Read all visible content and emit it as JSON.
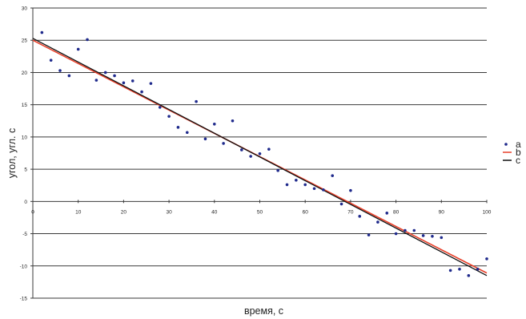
{
  "chart_data": {
    "type": "scatter",
    "title": "",
    "xlabel": "время, с",
    "ylabel": "угол, угл. с",
    "xlim": [
      0,
      100
    ],
    "ylim": [
      -15,
      30
    ],
    "xticks": [
      0,
      10,
      20,
      30,
      40,
      50,
      60,
      70,
      80,
      90,
      100
    ],
    "yticks": [
      -15,
      -10,
      -5,
      0,
      5,
      10,
      15,
      20,
      25,
      30
    ],
    "grid": "horizontal",
    "legend_position": "right",
    "series": [
      {
        "name": "a",
        "kind": "points",
        "color": "#1f2a8c",
        "x": [
          2,
          4,
          6,
          8,
          10,
          12,
          14,
          16,
          18,
          20,
          22,
          24,
          26,
          28,
          30,
          32,
          34,
          36,
          38,
          40,
          42,
          44,
          46,
          48,
          50,
          52,
          54,
          56,
          58,
          60,
          62,
          64,
          66,
          68,
          70,
          72,
          74,
          76,
          78,
          80,
          82,
          84,
          86,
          88,
          90,
          92,
          94,
          96,
          98,
          100
        ],
        "y": [
          26.2,
          21.9,
          20.3,
          19.5,
          23.6,
          25.1,
          18.8,
          20.0,
          19.5,
          18.4,
          18.7,
          17.0,
          18.3,
          14.6,
          13.2,
          11.5,
          10.7,
          15.5,
          9.7,
          12.0,
          9.0,
          12.5,
          8.0,
          7.0,
          7.4,
          8.1,
          4.8,
          2.6,
          3.3,
          2.6,
          2.0,
          1.8,
          4.0,
          -0.4,
          1.7,
          -2.3,
          -5.2,
          -3.2,
          -1.8,
          -5.0,
          -4.5,
          -4.5,
          -5.3,
          -5.4,
          -5.6,
          -10.7,
          -10.5,
          -11.5,
          -10.5,
          -8.9
        ]
      },
      {
        "name": "b",
        "kind": "line",
        "color": "#e8402a",
        "x": [
          0,
          100
        ],
        "y": [
          25.0,
          -11.1
        ]
      },
      {
        "name": "c",
        "kind": "line",
        "color": "#111111",
        "x": [
          0,
          100
        ],
        "y": [
          25.3,
          -11.5
        ]
      }
    ]
  }
}
